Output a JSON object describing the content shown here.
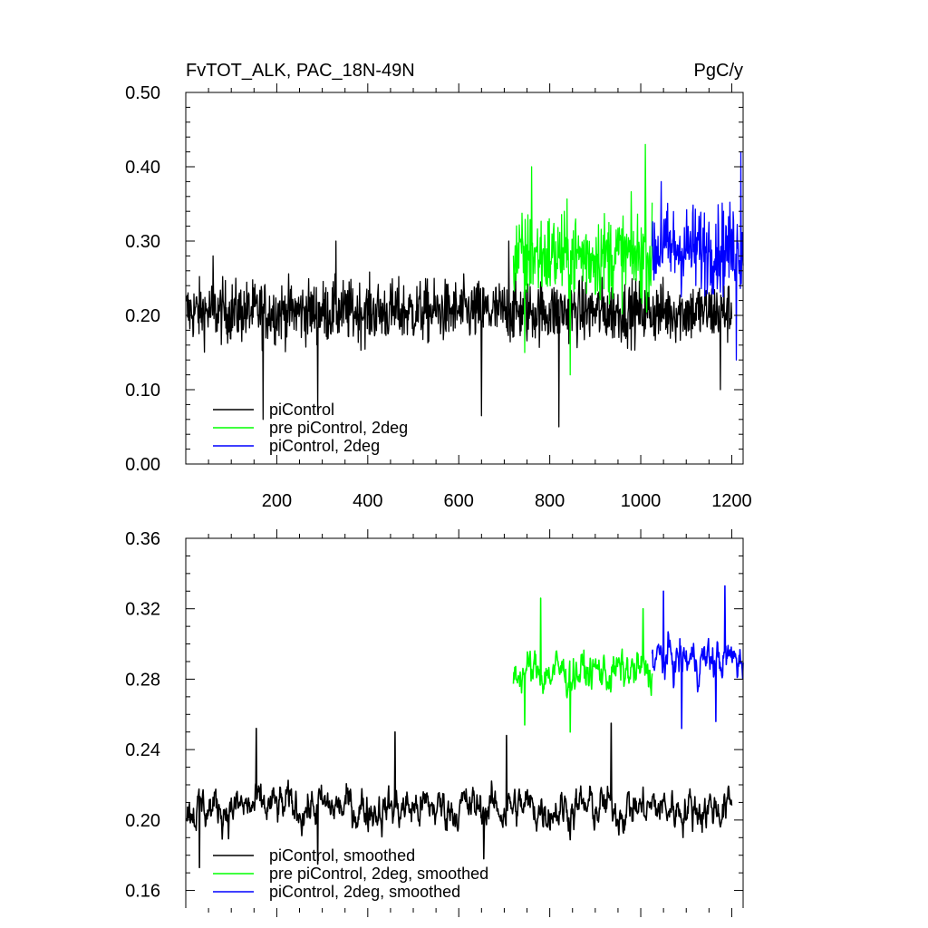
{
  "chart_data": [
    {
      "type": "line",
      "title": "FvTOT_ALK, PAC_18N-49N",
      "units": "PgC/y",
      "xlim": [
        0,
        1225
      ],
      "ylim": [
        0.0,
        0.5
      ],
      "xticks": [
        200,
        400,
        600,
        800,
        1000,
        1200
      ],
      "xtick_labels": [
        "200",
        "400",
        "600",
        "800",
        "1000",
        "1200"
      ],
      "yticks": [
        0.0,
        0.1,
        0.2,
        0.3,
        0.4,
        0.5
      ],
      "ytick_labels": [
        "0.00",
        "0.10",
        "0.20",
        "0.30",
        "0.40",
        "0.50"
      ],
      "legend_position": "bottom-left",
      "series": [
        {
          "name": "piControl",
          "color": "#000000",
          "x_range": [
            1,
            1200
          ],
          "mean": 0.205,
          "spread": 0.035,
          "highlights": [
            [
              170,
              0.06
            ],
            [
              290,
              0.07
            ],
            [
              650,
              0.065
            ],
            [
              820,
              0.05
            ],
            [
              1175,
              0.1
            ],
            [
              60,
              0.28
            ],
            [
              330,
              0.3
            ],
            [
              710,
              0.3
            ]
          ]
        },
        {
          "name": "pre piControl, 2deg",
          "color": "#00ff00",
          "x_range": [
            720,
            1025
          ],
          "mean": 0.28,
          "spread": 0.05,
          "highlights": [
            [
              1010,
              0.43
            ],
            [
              760,
              0.4
            ],
            [
              845,
              0.12
            ],
            [
              745,
              0.15
            ]
          ]
        },
        {
          "name": "piControl, 2deg",
          "color": "#0000ff",
          "x_range": [
            1025,
            1225
          ],
          "mean": 0.29,
          "spread": 0.05,
          "highlights": [
            [
              1220,
              0.42
            ],
            [
              1210,
              0.14
            ],
            [
              1045,
              0.38
            ]
          ]
        }
      ]
    },
    {
      "type": "line",
      "title": "",
      "xlim": [
        0,
        1225
      ],
      "ylim": [
        0.15,
        0.36
      ],
      "yticks": [
        0.16,
        0.2,
        0.24,
        0.28,
        0.32,
        0.36
      ],
      "ytick_labels": [
        "0.16",
        "0.20",
        "0.24",
        "0.28",
        "0.32",
        "0.36"
      ],
      "legend_position": "bottom-left",
      "series": [
        {
          "name": "piControl, smoothed",
          "color": "#000000",
          "x_range": [
            1,
            1200
          ],
          "mean": 0.207,
          "spread": 0.011,
          "highlights": [
            [
              155,
              0.252
            ],
            [
              935,
              0.255
            ],
            [
              460,
              0.25
            ],
            [
              705,
              0.248
            ],
            [
              30,
              0.173
            ],
            [
              290,
              0.175
            ],
            [
              655,
              0.178
            ]
          ]
        },
        {
          "name": "pre piControl, 2deg, smoothed",
          "color": "#00ff00",
          "x_range": [
            720,
            1025
          ],
          "mean": 0.284,
          "spread": 0.011,
          "highlights": [
            [
              780,
              0.326
            ],
            [
              745,
              0.254
            ],
            [
              845,
              0.25
            ],
            [
              1005,
              0.32
            ]
          ]
        },
        {
          "name": "piControl, 2deg, smoothed",
          "color": "#0000ff",
          "x_range": [
            1025,
            1225
          ],
          "mean": 0.291,
          "spread": 0.011,
          "highlights": [
            [
              1185,
              0.333
            ],
            [
              1090,
              0.252
            ],
            [
              1050,
              0.33
            ],
            [
              1165,
              0.256
            ]
          ]
        }
      ]
    }
  ]
}
